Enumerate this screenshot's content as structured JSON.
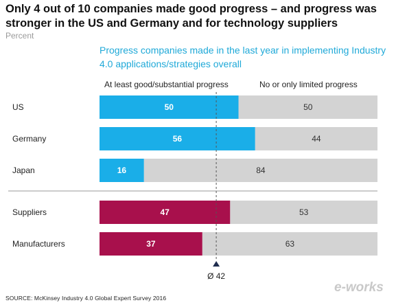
{
  "title": "Only 4 out of 10 companies made good progress – and progress was stronger in the US and Germany and for technology suppliers",
  "unit": "Percent",
  "subtitle": "Progress companies made in the last year in implementing Industry 4.0 applications/strategies overall",
  "source": "SOURCE: McKinsey Industry 4.0 Global Expert Survey 2016",
  "watermark": "e-works",
  "colors": {
    "country_bar": "#1aaee8",
    "role_bar": "#a8104c",
    "remainder_bar": "#d3d3d3",
    "subtitle": "#1fa9d8"
  },
  "chart_data": {
    "type": "bar",
    "stacked": true,
    "orientation": "horizontal",
    "categories": [
      "US",
      "Germany",
      "Japan",
      "Suppliers",
      "Manufacturers"
    ],
    "series": [
      {
        "name": "At least good/substantial progress",
        "values": [
          50,
          56,
          16,
          47,
          37
        ]
      },
      {
        "name": "No or only limited progress",
        "values": [
          50,
          44,
          84,
          53,
          63
        ]
      }
    ],
    "groups": [
      {
        "categories": [
          "US",
          "Germany",
          "Japan"
        ],
        "color": "country_bar"
      },
      {
        "categories": [
          "Suppliers",
          "Manufacturers"
        ],
        "color": "role_bar"
      }
    ],
    "xlim": [
      0,
      100
    ],
    "average": {
      "value": 42,
      "label": "Ø 42"
    },
    "legend_position": "top"
  }
}
